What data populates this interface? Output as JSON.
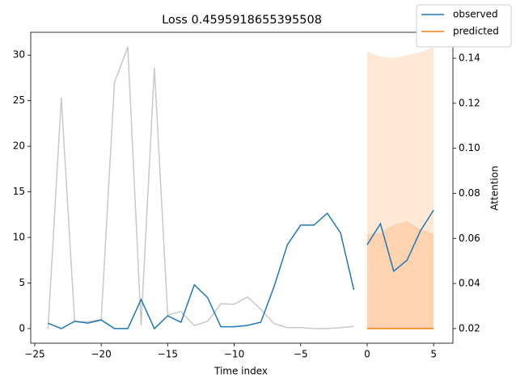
{
  "chart_data": {
    "type": "line",
    "title": "Loss 0.4595918655395508",
    "xlabel": "Time index",
    "y2label": "Attention",
    "xlim": [
      -25.3,
      6.45
    ],
    "ylim": [
      -1.6,
      32.5
    ],
    "y2lim": [
      0.0135,
      0.1515
    ],
    "xticks": [
      {
        "value": -25,
        "label": "−25"
      },
      {
        "value": -20,
        "label": "−20"
      },
      {
        "value": -15,
        "label": "−15"
      },
      {
        "value": -10,
        "label": "−10"
      },
      {
        "value": -5,
        "label": "−5"
      },
      0,
      5
    ],
    "yticks": [
      0,
      5,
      10,
      15,
      20,
      25,
      30
    ],
    "y2ticks": [
      0.02,
      0.04,
      0.06,
      0.08,
      {
        "value": 0.1,
        "label": "0.10"
      },
      {
        "value": 0.12,
        "label": "0.12"
      },
      {
        "value": 0.14,
        "label": "0.14"
      }
    ],
    "bands": [
      {
        "color": "#ffe8d6",
        "x": [
          0,
          1,
          2,
          3,
          4,
          5
        ],
        "lower": [
          0,
          0,
          0,
          0,
          0,
          0
        ],
        "upper": [
          30.4,
          29.8,
          29.7,
          30.0,
          30.3,
          30.9
        ]
      },
      {
        "color": "#ffd3b0",
        "x": [
          0,
          1,
          2,
          3,
          4,
          5
        ],
        "lower": [
          0,
          0,
          0,
          0,
          0,
          0
        ],
        "upper": [
          10.3,
          10.5,
          11.4,
          11.8,
          10.9,
          10.4
        ]
      }
    ],
    "series": [
      {
        "color": "#c8c8c8",
        "axis": "y2",
        "x": [
          -24,
          -23,
          -22,
          -21,
          -20,
          -19,
          -18,
          -17,
          -16,
          -15,
          -14,
          -13,
          -12,
          -11,
          -10,
          -9,
          -8,
          -7,
          -6,
          -5,
          -4,
          -3,
          -2,
          -1
        ],
        "values": [
          0.02,
          0.1225,
          0.0232,
          0.023,
          0.024,
          0.1293,
          0.145,
          0.0214,
          0.1358,
          0.026,
          0.0275,
          0.0214,
          0.0232,
          0.031,
          0.0308,
          0.034,
          0.0286,
          0.0222,
          0.0204,
          0.0204,
          0.02,
          0.02,
          0.0204,
          0.021
        ]
      },
      {
        "name": "observed",
        "color": "#1f77b4",
        "x": [
          -24,
          -23,
          -22,
          -21,
          -20,
          -19,
          -18,
          -17,
          -16,
          -15,
          -14,
          -13,
          -12,
          -11,
          -10,
          -9,
          -8,
          -7,
          -6,
          -5,
          -4,
          -3,
          -2,
          -1
        ],
        "values": [
          0.6,
          0.0,
          0.8,
          0.6,
          0.95,
          0.0,
          0.0,
          3.2,
          0.0,
          1.4,
          0.7,
          4.8,
          3.4,
          0.2,
          0.2,
          0.35,
          0.7,
          4.6,
          9.2,
          11.35,
          11.35,
          12.65,
          10.5,
          4.25
        ]
      },
      {
        "color": "#1f77b4",
        "x": [
          0,
          1,
          2,
          3,
          4,
          5
        ],
        "values": [
          9.2,
          11.5,
          6.3,
          7.5,
          10.7,
          13.0
        ]
      },
      {
        "name": "predicted",
        "color": "#ff7f0e",
        "x": [
          0,
          1,
          2,
          3,
          4,
          5
        ],
        "values": [
          0,
          0,
          0,
          0,
          0,
          0
        ]
      }
    ]
  }
}
